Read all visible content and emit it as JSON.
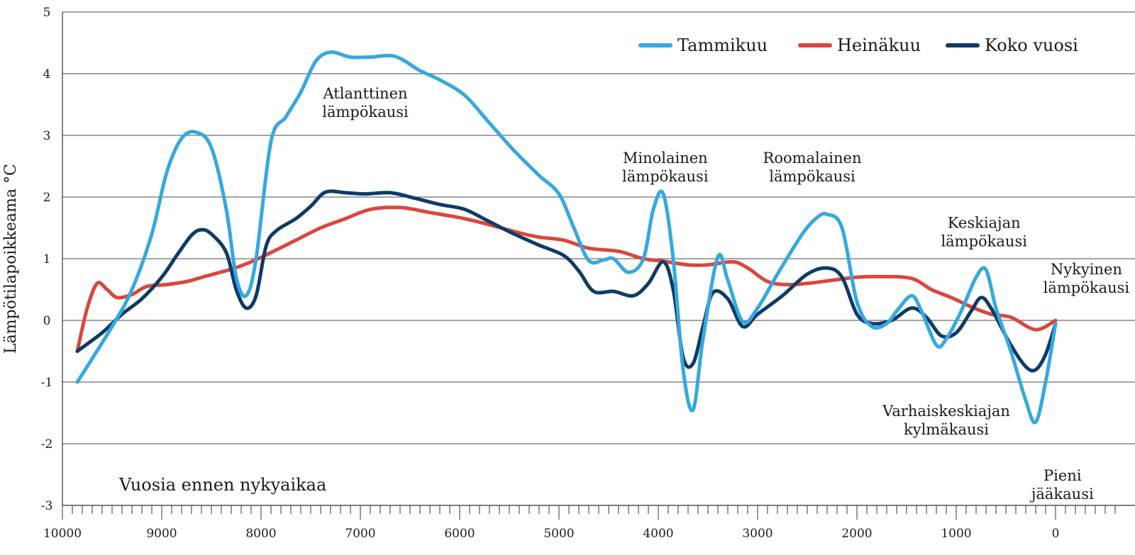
{
  "chart_data": {
    "type": "line",
    "title": "",
    "xlabel": "Vuosia ennen nykyaikaa",
    "ylabel": "Lämpötilapoikkeama °C",
    "xlim": [
      10000,
      -600
    ],
    "ylim": [
      -3,
      5
    ],
    "x_ticks": [
      10000,
      9000,
      8000,
      7000,
      6000,
      5000,
      4000,
      3000,
      2000,
      1000,
      0
    ],
    "x_tick_labels": [
      "10000",
      "9000",
      "8000",
      "7000",
      "6000",
      "5000",
      "4000",
      "3000",
      "2000",
      "1000",
      "0"
    ],
    "y_ticks": [
      -3,
      -2,
      -1,
      0,
      1,
      2,
      3,
      4,
      5
    ],
    "y_tick_labels": [
      "-3",
      "-2",
      "-1",
      "0",
      "1",
      "2",
      "3",
      "4",
      "5"
    ],
    "minor_tick_step": 100,
    "grid": true,
    "legend_position": "top-right",
    "series": [
      {
        "name": "Tammikuu",
        "color": "#35a8e0",
        "points": [
          [
            9850,
            -1.0
          ],
          [
            9500,
            -0.1
          ],
          [
            9300,
            0.5
          ],
          [
            9100,
            1.4
          ],
          [
            8950,
            2.4
          ],
          [
            8800,
            2.95
          ],
          [
            8650,
            3.05
          ],
          [
            8500,
            2.8
          ],
          [
            8350,
            1.8
          ],
          [
            8250,
            0.7
          ],
          [
            8150,
            0.4
          ],
          [
            8050,
            1.0
          ],
          [
            7900,
            2.9
          ],
          [
            7750,
            3.3
          ],
          [
            7600,
            3.7
          ],
          [
            7450,
            4.2
          ],
          [
            7300,
            4.35
          ],
          [
            7100,
            4.27
          ],
          [
            6900,
            4.27
          ],
          [
            6650,
            4.28
          ],
          [
            6400,
            4.05
          ],
          [
            6200,
            3.9
          ],
          [
            5950,
            3.65
          ],
          [
            5700,
            3.2
          ],
          [
            5450,
            2.75
          ],
          [
            5200,
            2.35
          ],
          [
            5000,
            2.05
          ],
          [
            4850,
            1.5
          ],
          [
            4700,
            0.97
          ],
          [
            4550,
            0.98
          ],
          [
            4450,
            1.0
          ],
          [
            4300,
            0.78
          ],
          [
            4150,
            1.0
          ],
          [
            4050,
            1.8
          ],
          [
            3950,
            2.05
          ],
          [
            3850,
            1.0
          ],
          [
            3750,
            -0.8
          ],
          [
            3650,
            -1.45
          ],
          [
            3550,
            -0.3
          ],
          [
            3400,
            1.03
          ],
          [
            3300,
            0.65
          ],
          [
            3150,
            -0.02
          ],
          [
            3000,
            0.2
          ],
          [
            2800,
            0.75
          ],
          [
            2550,
            1.4
          ],
          [
            2400,
            1.67
          ],
          [
            2300,
            1.72
          ],
          [
            2150,
            1.5
          ],
          [
            2000,
            0.3
          ],
          [
            1850,
            -0.1
          ],
          [
            1700,
            -0.05
          ],
          [
            1600,
            0.15
          ],
          [
            1450,
            0.4
          ],
          [
            1350,
            0.15
          ],
          [
            1200,
            -0.4
          ],
          [
            1100,
            -0.3
          ],
          [
            950,
            0.15
          ],
          [
            800,
            0.7
          ],
          [
            700,
            0.82
          ],
          [
            600,
            0.2
          ],
          [
            450,
            -0.5
          ],
          [
            300,
            -1.3
          ],
          [
            200,
            -1.65
          ],
          [
            100,
            -1.0
          ],
          [
            0,
            -0.05
          ]
        ]
      },
      {
        "name": "Heinäkuu",
        "color": "#d9473c",
        "points": [
          [
            9850,
            -0.5
          ],
          [
            9750,
            0.2
          ],
          [
            9650,
            0.6
          ],
          [
            9550,
            0.5
          ],
          [
            9450,
            0.37
          ],
          [
            9300,
            0.42
          ],
          [
            9150,
            0.55
          ],
          [
            8950,
            0.58
          ],
          [
            8750,
            0.63
          ],
          [
            8550,
            0.72
          ],
          [
            8300,
            0.83
          ],
          [
            8100,
            0.95
          ],
          [
            7900,
            1.1
          ],
          [
            7650,
            1.3
          ],
          [
            7400,
            1.5
          ],
          [
            7150,
            1.65
          ],
          [
            6900,
            1.8
          ],
          [
            6600,
            1.83
          ],
          [
            6300,
            1.75
          ],
          [
            5950,
            1.65
          ],
          [
            5700,
            1.55
          ],
          [
            5400,
            1.42
          ],
          [
            5200,
            1.35
          ],
          [
            4950,
            1.3
          ],
          [
            4700,
            1.17
          ],
          [
            4400,
            1.12
          ],
          [
            4150,
            1.0
          ],
          [
            3950,
            0.96
          ],
          [
            3700,
            0.9
          ],
          [
            3500,
            0.9
          ],
          [
            3250,
            0.95
          ],
          [
            3100,
            0.85
          ],
          [
            2900,
            0.63
          ],
          [
            2700,
            0.58
          ],
          [
            2500,
            0.6
          ],
          [
            2250,
            0.65
          ],
          [
            2000,
            0.7
          ],
          [
            1750,
            0.71
          ],
          [
            1450,
            0.68
          ],
          [
            1250,
            0.5
          ],
          [
            1050,
            0.37
          ],
          [
            850,
            0.22
          ],
          [
            650,
            0.1
          ],
          [
            450,
            0.05
          ],
          [
            200,
            -0.15
          ],
          [
            0,
            0.0
          ]
        ]
      },
      {
        "name": "Koko vuosi",
        "color": "#0e3b66",
        "points": [
          [
            9850,
            -0.5
          ],
          [
            9600,
            -0.2
          ],
          [
            9400,
            0.1
          ],
          [
            9200,
            0.35
          ],
          [
            9000,
            0.7
          ],
          [
            8850,
            1.05
          ],
          [
            8700,
            1.38
          ],
          [
            8600,
            1.47
          ],
          [
            8500,
            1.4
          ],
          [
            8350,
            1.1
          ],
          [
            8250,
            0.5
          ],
          [
            8150,
            0.2
          ],
          [
            8050,
            0.4
          ],
          [
            7950,
            1.2
          ],
          [
            7850,
            1.45
          ],
          [
            7650,
            1.65
          ],
          [
            7500,
            1.85
          ],
          [
            7350,
            2.08
          ],
          [
            7150,
            2.07
          ],
          [
            6950,
            2.05
          ],
          [
            6700,
            2.07
          ],
          [
            6450,
            1.98
          ],
          [
            6200,
            1.88
          ],
          [
            5950,
            1.8
          ],
          [
            5700,
            1.6
          ],
          [
            5450,
            1.4
          ],
          [
            5200,
            1.22
          ],
          [
            4950,
            1.05
          ],
          [
            4800,
            0.8
          ],
          [
            4650,
            0.47
          ],
          [
            4450,
            0.47
          ],
          [
            4250,
            0.4
          ],
          [
            4100,
            0.6
          ],
          [
            3950,
            0.95
          ],
          [
            3850,
            0.5
          ],
          [
            3750,
            -0.6
          ],
          [
            3650,
            -0.7
          ],
          [
            3550,
            -0.1
          ],
          [
            3450,
            0.45
          ],
          [
            3300,
            0.35
          ],
          [
            3150,
            -0.1
          ],
          [
            3000,
            0.1
          ],
          [
            2750,
            0.4
          ],
          [
            2500,
            0.75
          ],
          [
            2300,
            0.85
          ],
          [
            2150,
            0.7
          ],
          [
            2000,
            0.1
          ],
          [
            1850,
            -0.05
          ],
          [
            1650,
            0.0
          ],
          [
            1450,
            0.2
          ],
          [
            1300,
            0.05
          ],
          [
            1150,
            -0.25
          ],
          [
            1000,
            -0.2
          ],
          [
            850,
            0.15
          ],
          [
            750,
            0.37
          ],
          [
            650,
            0.2
          ],
          [
            450,
            -0.4
          ],
          [
            300,
            -0.75
          ],
          [
            200,
            -0.8
          ],
          [
            100,
            -0.55
          ],
          [
            0,
            -0.05
          ]
        ]
      }
    ],
    "annotations": [
      {
        "lines": [
          "Atlanttinen",
          "lämpökausi"
        ],
        "x": 6950,
        "y": 3.6
      },
      {
        "lines": [
          "Minolainen",
          "lämpökausi"
        ],
        "x": 3930,
        "y": 2.55
      },
      {
        "lines": [
          "Roomalainen",
          "lämpökausi"
        ],
        "x": 2450,
        "y": 2.55
      },
      {
        "lines": [
          "Keskiajan",
          "lämpökausi"
        ],
        "x": 720,
        "y": 1.5
      },
      {
        "lines": [
          "Nykyinen",
          "lämpökausi"
        ],
        "x": -310,
        "y": 0.75
      },
      {
        "lines": [
          "Varhaiskeskiajan",
          "kylmäkausi"
        ],
        "x": 1100,
        "y": -1.55
      },
      {
        "lines": [
          "Pieni",
          "jääkausi"
        ],
        "x": -70,
        "y": -2.6
      }
    ]
  }
}
